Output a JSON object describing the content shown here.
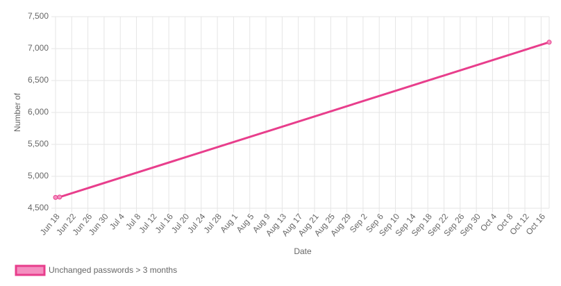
{
  "chart_data": {
    "type": "line",
    "x_label": "Date",
    "y_label": "Number of",
    "x": [
      "Jun 18",
      "Jun 19",
      "Oct 18"
    ],
    "series": [
      {
        "name": "Unchanged passwords > 3 months",
        "color": "#e83e8c",
        "values": [
          4670,
          4675,
          7100
        ]
      }
    ],
    "xlim": [
      "Jun 18",
      "Oct 18"
    ],
    "xticks": [
      "Jun 18",
      "Jun 22",
      "Jun 26",
      "Jun 30",
      "Jul 4",
      "Jul 8",
      "Jul 12",
      "Jul 16",
      "Jul 20",
      "Jul 24",
      "Jul 28",
      "Aug 1",
      "Aug 5",
      "Aug 9",
      "Aug 13",
      "Aug 17",
      "Aug 21",
      "Aug 25",
      "Aug 29",
      "Sep 2",
      "Sep 6",
      "Sep 10",
      "Sep 14",
      "Sep 18",
      "Sep 22",
      "Sep 26",
      "Sep 30",
      "Oct 4",
      "Oct 8",
      "Oct 12",
      "Oct 16"
    ],
    "ylim": [
      4500,
      7500
    ],
    "yticks": [
      {
        "value": 4500,
        "label": "4,500"
      },
      {
        "value": 5000,
        "label": "5,000"
      },
      {
        "value": 5500,
        "label": "5,500"
      },
      {
        "value": 6000,
        "label": "6,000"
      },
      {
        "value": 6500,
        "label": "6,500"
      },
      {
        "value": 7000,
        "label": "7,000"
      },
      {
        "value": 7500,
        "label": "7,500"
      }
    ],
    "grid": true
  }
}
